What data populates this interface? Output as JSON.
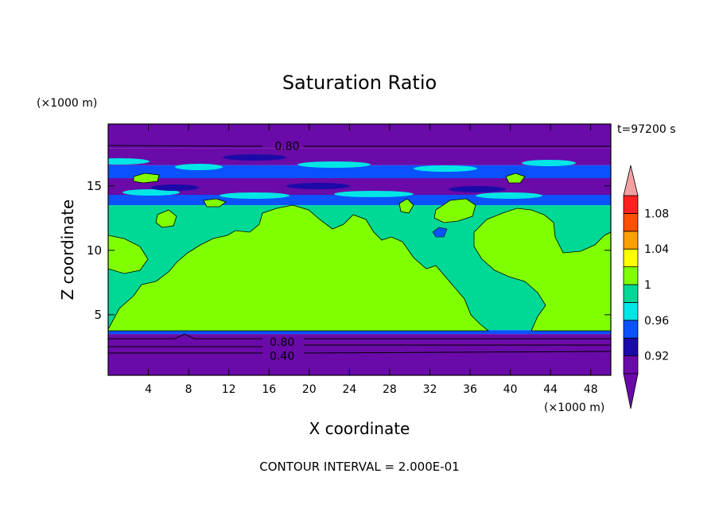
{
  "chart_data": {
    "type": "heatmap",
    "title": "Saturation Ratio",
    "xlabel": "X coordinate",
    "ylabel": "Z coordinate",
    "x_unit": "(×1000 m)",
    "y_unit": "(×1000 m)",
    "time_label": "t=97200 s",
    "footer": "CONTOUR INTERVAL = 2.000E-01",
    "xlim": [
      0,
      50
    ],
    "ylim": [
      0.3,
      19.8
    ],
    "x_ticks": [
      4,
      8,
      12,
      16,
      20,
      24,
      28,
      32,
      36,
      40,
      44,
      48
    ],
    "y_ticks": [
      5,
      10,
      15
    ],
    "contour_labels": [
      {
        "text": "0.80",
        "x": 17.8,
        "z": 18.1
      },
      {
        "text": "0.80",
        "x": 17.3,
        "z": 2.9
      },
      {
        "text": "0.40",
        "x": 17.3,
        "z": 1.8
      }
    ],
    "colorbar": {
      "levels": [
        0.9,
        0.92,
        0.94,
        0.96,
        0.98,
        1.0,
        1.02,
        1.04,
        1.06,
        1.08,
        1.1
      ],
      "labels": [
        {
          "text": "0.92",
          "value": 0.92
        },
        {
          "text": "0.96",
          "value": 0.96
        },
        {
          "text": "1",
          "value": 1.0
        },
        {
          "text": "1.04",
          "value": 1.04
        },
        {
          "text": "1.08",
          "value": 1.08
        }
      ],
      "colors": [
        "#6a0aa8",
        "#1c0aa8",
        "#0a52ff",
        "#00e6e6",
        "#00d896",
        "#80ff00",
        "#ffff00",
        "#ffa000",
        "#ff5000",
        "#ff2020"
      ],
      "under_color": "#6a0aa8",
      "over_color": "#f4a0a0"
    },
    "bands": [
      {
        "name": "upper-dry-layer",
        "z0": 17.9,
        "z1": 19.8,
        "color": "#6a0aa8"
      },
      {
        "name": "upper-dry-layer-2",
        "z0": 16.6,
        "z1": 17.9,
        "color": "#6a0aa8"
      },
      {
        "name": "cirrus-layer",
        "z0": 13.5,
        "z1": 16.6,
        "color": "#0a52ff"
      },
      {
        "name": "tropo-band",
        "z0": 14.3,
        "z1": 15.6,
        "color": "#6a0aa8"
      },
      {
        "name": "mid-troposphere",
        "z0": 3.8,
        "z1": 13.5,
        "color": "#00d896"
      },
      {
        "name": "cloud-base-edge",
        "z0": 3.5,
        "z1": 3.8,
        "color": "#0a52ff"
      },
      {
        "name": "boundary-dry-layer",
        "z0": 0.3,
        "z1": 3.5,
        "color": "#6a0aa8"
      }
    ]
  }
}
